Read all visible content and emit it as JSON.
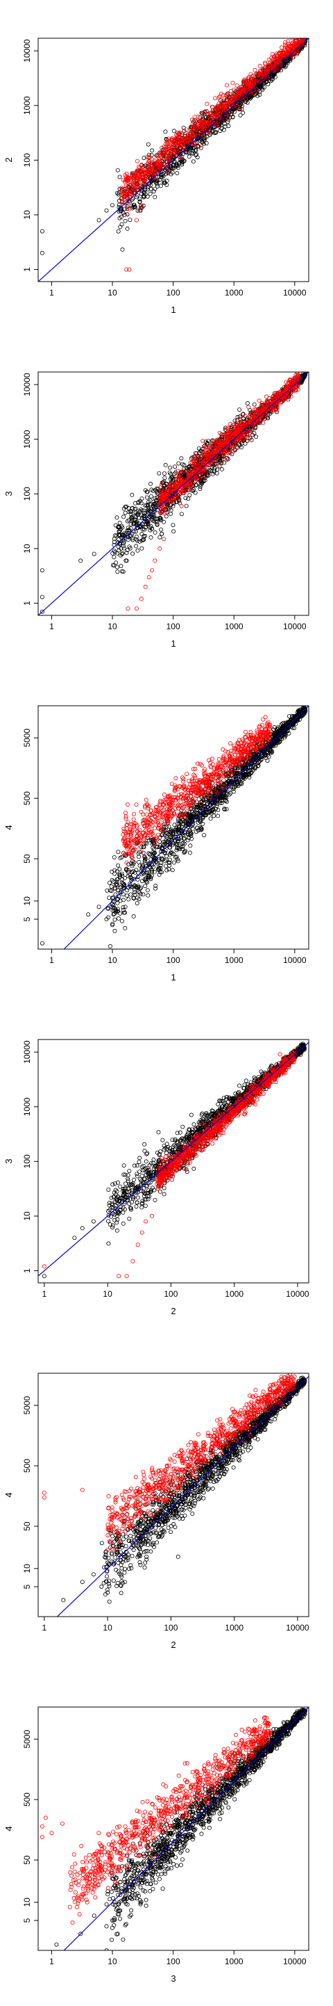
{
  "colors": {
    "black_points": "#000000",
    "red_points": "#ff0000",
    "diagonal_line": "#0000cc",
    "frame": "#000000",
    "background": "#ffffff"
  },
  "chart_data": [
    {
      "type": "scatter",
      "scale": "log-log",
      "xlabel": "1",
      "ylabel": "2",
      "xlim": [
        0.6,
        17000
      ],
      "ylim": [
        0.6,
        17000
      ],
      "x_ticks": [
        1,
        10,
        100,
        1000,
        10000
      ],
      "x_tick_labels": [
        "1",
        "10",
        "100",
        "1000",
        "10000"
      ],
      "y_ticks": [
        1,
        10,
        100,
        1000,
        10000
      ],
      "y_tick_labels": [
        "1",
        "10",
        "100",
        "1000",
        "10000"
      ],
      "reference_line": "y = x",
      "series": [
        {
          "color": "black",
          "cloud": {
            "x_range": [
              12,
              15000
            ],
            "spread_low": 0.45,
            "spread_high": 0.5
          },
          "outliers": [
            [
              0.7,
              2
            ],
            [
              0.7,
              5
            ],
            [
              6,
              8
            ],
            [
              8,
              12
            ],
            [
              10,
              15
            ],
            [
              12,
              25
            ],
            [
              13,
              18
            ]
          ]
        },
        {
          "color": "red",
          "band": {
            "x_range": [
              14,
              15000
            ],
            "y_factor": 1.8,
            "spread": 0.15
          },
          "outliers": [
            [
              17,
              1
            ],
            [
              19,
              1
            ],
            [
              25,
              8
            ],
            [
              28,
              12
            ],
            [
              30,
              15
            ]
          ]
        }
      ]
    },
    {
      "type": "scatter",
      "scale": "log-log",
      "xlabel": "1",
      "ylabel": "3",
      "xlim": [
        0.6,
        17000
      ],
      "ylim": [
        0.6,
        17000
      ],
      "x_ticks": [
        1,
        10,
        100,
        1000,
        10000
      ],
      "x_tick_labels": [
        "1",
        "10",
        "100",
        "1000",
        "10000"
      ],
      "y_ticks": [
        1,
        10,
        100,
        1000,
        10000
      ],
      "y_tick_labels": [
        "1",
        "10",
        "100",
        "1000",
        "10000"
      ],
      "reference_line": "y = x",
      "series": [
        {
          "color": "black",
          "cloud": {
            "x_range": [
              10,
              15000
            ],
            "spread_low": 0.5,
            "spread_high": 0.6
          },
          "outliers": [
            [
              0.7,
              0.7
            ],
            [
              0.7,
              1.3
            ],
            [
              0.7,
              4
            ],
            [
              3,
              6
            ],
            [
              5,
              8
            ]
          ]
        },
        {
          "color": "red",
          "band": {
            "x_range": [
              60,
              12000
            ],
            "y_factor": 1.2,
            "spread": 0.15
          },
          "outliers": [
            [
              18,
              0.8
            ],
            [
              25,
              0.8
            ],
            [
              30,
              1.2
            ],
            [
              35,
              2
            ],
            [
              40,
              3
            ],
            [
              45,
              4
            ],
            [
              50,
              6
            ],
            [
              60,
              10
            ],
            [
              70,
              15
            ]
          ]
        }
      ]
    },
    {
      "type": "scatter",
      "scale": "log-log",
      "xlabel": "1",
      "ylabel": "4",
      "xlim": [
        0.6,
        17000
      ],
      "ylim": [
        1.6,
        17000
      ],
      "x_ticks": [
        1,
        10,
        100,
        1000,
        10000
      ],
      "x_tick_labels": [
        "1",
        "10",
        "100",
        "1000",
        "10000"
      ],
      "y_ticks": [
        5,
        10,
        50,
        500,
        5000
      ],
      "y_tick_labels": [
        "5",
        "10",
        "50",
        "500",
        "5000"
      ],
      "reference_line": "y = x",
      "series": [
        {
          "color": "black",
          "cloud": {
            "x_range": [
              8,
              15000
            ],
            "spread_low": 0.5,
            "spread_high": 0.6
          },
          "outliers": [
            [
              0.7,
              2
            ],
            [
              4,
              6
            ],
            [
              6,
              8
            ],
            [
              8,
              5
            ],
            [
              10,
              4
            ]
          ]
        },
        {
          "color": "red",
          "band": {
            "x_range": [
              15,
              4000
            ],
            "y_factor": 6,
            "spread": 0.2
          },
          "outliers": [
            [
              15,
              100
            ],
            [
              20,
              120
            ],
            [
              18,
              90
            ]
          ]
        }
      ]
    },
    {
      "type": "scatter",
      "scale": "log-log",
      "xlabel": "2",
      "ylabel": "3",
      "xlim": [
        0.8,
        15000
      ],
      "ylim": [
        0.6,
        17000
      ],
      "x_ticks": [
        1,
        10,
        100,
        1000,
        10000
      ],
      "x_tick_labels": [
        "1",
        "10",
        "100",
        "1000",
        "10000"
      ],
      "y_ticks": [
        1,
        10,
        100,
        1000,
        10000
      ],
      "y_tick_labels": [
        "1",
        "10",
        "100",
        "1000",
        "10000"
      ],
      "reference_line": "y = x",
      "series": [
        {
          "color": "black",
          "cloud": {
            "x_range": [
              10,
              13000
            ],
            "spread_low": 0.5,
            "spread_high": 0.5
          },
          "outliers": [
            [
              1,
              0.8
            ],
            [
              3,
              4
            ],
            [
              4,
              6
            ],
            [
              6,
              8
            ]
          ]
        },
        {
          "color": "red",
          "band": {
            "x_range": [
              60,
              9000
            ],
            "y_factor": 0.75,
            "spread": 0.12
          },
          "outliers": [
            [
              1,
              1.2
            ],
            [
              15,
              0.8
            ],
            [
              20,
              0.8
            ],
            [
              25,
              1.5
            ],
            [
              30,
              3
            ],
            [
              35,
              5
            ],
            [
              40,
              8
            ],
            [
              50,
              10
            ]
          ]
        }
      ]
    },
    {
      "type": "scatter",
      "scale": "log-log",
      "xlabel": "2",
      "ylabel": "4",
      "xlim": [
        0.8,
        15000
      ],
      "ylim": [
        1.6,
        17000
      ],
      "x_ticks": [
        1,
        10,
        100,
        1000,
        10000
      ],
      "x_tick_labels": [
        "1",
        "10",
        "100",
        "1000",
        "10000"
      ],
      "y_ticks": [
        5,
        10,
        50,
        500,
        5000
      ],
      "y_tick_labels": [
        "5",
        "10",
        "50",
        "500",
        "5000"
      ],
      "reference_line": "y = x",
      "series": [
        {
          "color": "black",
          "cloud": {
            "x_range": [
              8,
              13000
            ],
            "spread_low": 0.5,
            "spread_high": 0.6
          },
          "outliers": [
            [
              2,
              3
            ],
            [
              4,
              6
            ],
            [
              6,
              8
            ],
            [
              8,
              5
            ],
            [
              10,
              4
            ]
          ]
        },
        {
          "color": "red",
          "band": {
            "x_range": [
              10,
              9000
            ],
            "y_factor": 5,
            "spread": 0.2
          },
          "outliers": [
            [
              1,
              150
            ],
            [
              1,
              180
            ],
            [
              4,
              200
            ]
          ]
        }
      ]
    },
    {
      "type": "scatter",
      "scale": "log-log",
      "xlabel": "3",
      "ylabel": "4",
      "xlim": [
        0.6,
        17000
      ],
      "ylim": [
        1.6,
        17000
      ],
      "x_ticks": [
        1,
        10,
        100,
        1000,
        10000
      ],
      "x_tick_labels": [
        "1",
        "10",
        "100",
        "1000",
        "10000"
      ],
      "y_ticks": [
        5,
        10,
        50,
        500,
        5000
      ],
      "y_tick_labels": [
        "5",
        "10",
        "50",
        "500",
        "5000"
      ],
      "reference_line": "y = x",
      "series": [
        {
          "color": "black",
          "cloud": {
            "x_range": [
              8,
              15000
            ],
            "spread_low": 0.5,
            "spread_high": 0.6
          },
          "outliers": [
            [
              1.2,
              2
            ],
            [
              3,
              3
            ],
            [
              5,
              6
            ],
            [
              8,
              4
            ],
            [
              10,
              5
            ]
          ]
        },
        {
          "color": "red",
          "band": {
            "x_range": [
              2,
              4000
            ],
            "y_factor": 8,
            "spread": 0.25
          },
          "outliers": [
            [
              0.7,
              120
            ],
            [
              0.7,
              180
            ],
            [
              0.8,
              250
            ],
            [
              1,
              140
            ],
            [
              1.5,
              200
            ]
          ]
        }
      ]
    }
  ]
}
